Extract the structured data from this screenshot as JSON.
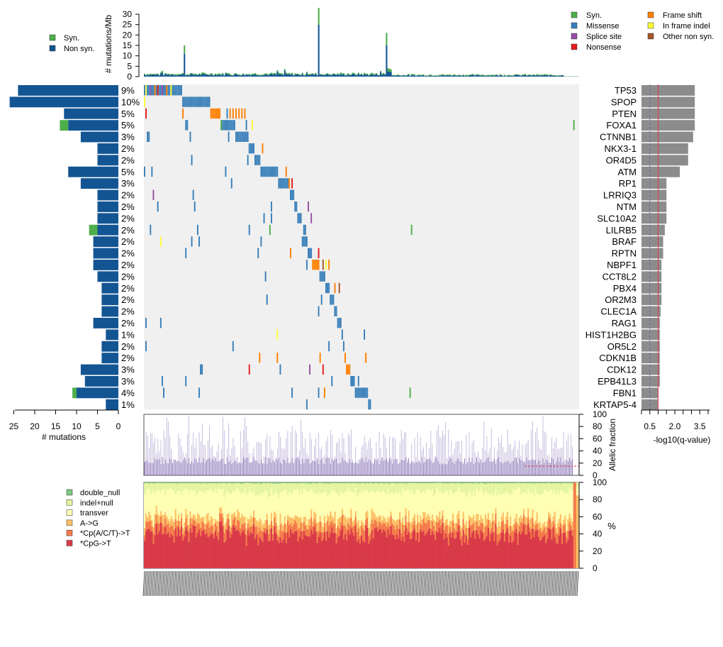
{
  "chart_data": [
    {
      "id": "tmb",
      "type": "bar",
      "ylabel": "# mutations/Mb",
      "ylim": [
        0,
        33
      ],
      "yticks": [
        0,
        5,
        10,
        15,
        20,
        25,
        30
      ],
      "n_samples": 295,
      "legend": [
        {
          "name": "Syn.",
          "color": "#4daf4a"
        },
        {
          "name": "Non syn.",
          "color": "#135593"
        }
      ],
      "baseline": {
        "nonsyn": 0.9,
        "syn": 0.5
      },
      "spikes": [
        {
          "sample": 12,
          "nonsyn": 2.0,
          "syn": 0.8
        },
        {
          "sample": 27,
          "nonsyn": 11.0,
          "syn": 4.0
        },
        {
          "sample": 55,
          "nonsyn": 1.6,
          "syn": 0.4
        },
        {
          "sample": 90,
          "nonsyn": 2.5,
          "syn": 0.6
        },
        {
          "sample": 95,
          "nonsyn": 3.0,
          "syn": 0.6
        },
        {
          "sample": 110,
          "nonsyn": 1.8,
          "syn": 0.5
        },
        {
          "sample": 118,
          "nonsyn": 25.0,
          "syn": 8.0
        },
        {
          "sample": 160,
          "nonsyn": 2.2,
          "syn": 0.5
        },
        {
          "sample": 164,
          "nonsyn": 15.0,
          "syn": 6.0
        },
        {
          "sample": 165,
          "nonsyn": 2.5,
          "syn": 1.5
        },
        {
          "sample": 166,
          "nonsyn": 2.4,
          "syn": 1.4
        },
        {
          "sample": 167,
          "nonsyn": 2.2,
          "syn": 1.3
        }
      ]
    },
    {
      "id": "oncoprint",
      "type": "heatmap",
      "genes": [
        "TP53",
        "SPOP",
        "PTEN",
        "FOXA1",
        "CTNNB1",
        "NKX3-1",
        "OR4D5",
        "ATM",
        "RP1",
        "LRRIQ3",
        "NTM",
        "SLC10A2",
        "LILRB5",
        "BRAF",
        "RPTN",
        "NBPF1",
        "CCT8L2",
        "PBX4",
        "OR2M3",
        "CLEC1A",
        "RAG1",
        "HIST1H2BG",
        "OR5L2",
        "CDKN1B",
        "CDK12",
        "EPB41L3",
        "FBN1",
        "KRTAP5-4"
      ],
      "percents": [
        "9%",
        "10%",
        "5%",
        "5%",
        "3%",
        "2%",
        "2%",
        "5%",
        "3%",
        "2%",
        "2%",
        "2%",
        "2%",
        "2%",
        "2%",
        "2%",
        "2%",
        "2%",
        "2%",
        "2%",
        "2%",
        "1%",
        "2%",
        "2%",
        "3%",
        "3%",
        "4%",
        "1%"
      ],
      "counts_nonsyn": [
        24,
        26,
        13,
        12,
        9,
        5,
        5,
        12,
        9,
        5,
        5,
        5,
        5,
        6,
        6,
        6,
        5,
        4,
        4,
        4,
        6,
        3,
        4,
        4,
        9,
        8,
        10,
        3
      ],
      "counts_syn": [
        0,
        0,
        0,
        2,
        0,
        0,
        0,
        0,
        0,
        0,
        0,
        0,
        2,
        0,
        0,
        0,
        0,
        0,
        0,
        0,
        0,
        0,
        0,
        0,
        0,
        0,
        1,
        0
      ],
      "left_axis_ticks": [
        25,
        20,
        15,
        10,
        5,
        0
      ],
      "left_axis_label": "# mutations",
      "q_values": [
        3.2,
        3.2,
        3.2,
        3.2,
        3.1,
        2.8,
        2.8,
        2.3,
        1.5,
        1.5,
        1.5,
        1.5,
        1.4,
        1.3,
        1.3,
        1.2,
        1.2,
        1.2,
        1.2,
        1.15,
        1.1,
        1.1,
        1.1,
        1.1,
        1.1,
        1.1,
        1.0,
        1.0
      ],
      "q_axis_ticks": [
        0.5,
        2.0,
        3.5
      ],
      "q_axis_max": 4.1,
      "q_axis_label": "-log10(q-value)",
      "q_threshold": 1.0,
      "q_dashed": 0.5,
      "mutation_legend": [
        {
          "name": "Syn.",
          "color": "#4daf4a"
        },
        {
          "name": "Missense",
          "color": "#377eb8"
        },
        {
          "name": "Splice site",
          "color": "#984ea3"
        },
        {
          "name": "Nonsense",
          "color": "#e41a1c"
        },
        {
          "name": "Frame shift",
          "color": "#ff7f00"
        },
        {
          "name": "In frame indel",
          "color": "#ffff33"
        },
        {
          "name": "Other non syn.",
          "color": "#a65628"
        }
      ]
    },
    {
      "id": "allelic_fraction",
      "type": "bar",
      "ylabel": "Allelic fraction",
      "ylim": [
        0,
        100
      ],
      "yticks": [
        0,
        20,
        40,
        60,
        80,
        100
      ],
      "median_line": 15
    },
    {
      "id": "spectrum",
      "type": "bar",
      "ylabel": "%",
      "ylim": [
        0,
        100
      ],
      "yticks": [
        0,
        20,
        40,
        60,
        80,
        100
      ],
      "categories": [
        {
          "name": "double_null",
          "color": "#7fc97f"
        },
        {
          "name": "indel+null",
          "color": "#e5f5a0"
        },
        {
          "name": "transver",
          "color": "#ffffb3"
        },
        {
          "name": "A->G",
          "color": "#fdc068"
        },
        {
          "name": "*Cp(A/C/T)->T",
          "color": "#f47c4c"
        },
        {
          "name": "*CpG->T",
          "color": "#d93a48"
        }
      ],
      "mean_shares": [
        1,
        10,
        30,
        9,
        10,
        40
      ]
    }
  ]
}
